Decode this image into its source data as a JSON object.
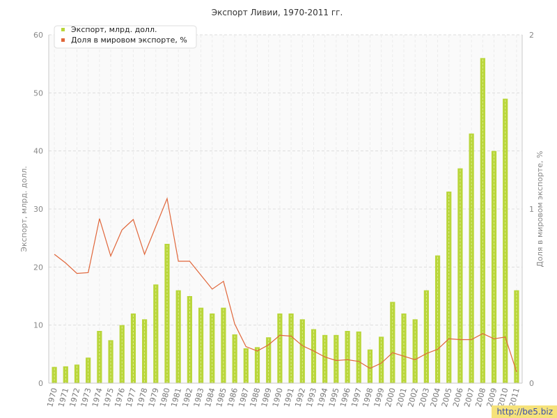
{
  "chart_data": {
    "type": "bar",
    "title": "Экспорт Ливии, 1970-2011 гг.",
    "ylabel": "Экспорт, млрд. долл.",
    "y2label": "Доля в мировом экспорте, %",
    "ylim": [
      0,
      60
    ],
    "y_ticks": [
      "0",
      "10",
      "20",
      "30",
      "40",
      "50",
      "60"
    ],
    "y2lim": [
      0,
      2
    ],
    "y2_ticks": [
      "0",
      "1",
      "2"
    ],
    "grid": true,
    "legend_position": "top-left",
    "categories": [
      "1970",
      "1971",
      "1972",
      "1973",
      "1974",
      "1975",
      "1976",
      "1977",
      "1978",
      "1979",
      "1980",
      "1981",
      "1982",
      "1983",
      "1984",
      "1985",
      "1986",
      "1987",
      "1988",
      "1989",
      "1990",
      "1991",
      "1992",
      "1993",
      "1994",
      "1995",
      "1996",
      "1997",
      "1998",
      "1999",
      "2000",
      "2001",
      "2002",
      "2003",
      "2004",
      "2005",
      "2006",
      "2007",
      "2008",
      "2009",
      "2010",
      "2011"
    ],
    "series": [
      {
        "name": "Экспорт, млрд. долл.",
        "type": "bar",
        "axis": "left",
        "color": "#b9d63a",
        "values": [
          2.8,
          2.9,
          3.2,
          4.4,
          9.0,
          7.4,
          10.0,
          12.0,
          11.0,
          17.0,
          24.0,
          16.0,
          15.0,
          13.0,
          12.0,
          13.0,
          8.4,
          6.0,
          6.2,
          7.9,
          12.0,
          12.0,
          11.0,
          9.3,
          8.3,
          8.3,
          9.0,
          8.9,
          5.8,
          8.0,
          14.0,
          12.0,
          11.0,
          16.0,
          22.0,
          33.0,
          37.0,
          43.0,
          56.0,
          40.0,
          49.0,
          16.0
        ]
      },
      {
        "name": "Доля в мировом экспорте, %",
        "type": "line",
        "axis": "right",
        "color": "#e0663a",
        "values": [
          0.74,
          0.69,
          0.63,
          0.635,
          0.945,
          0.73,
          0.88,
          0.94,
          0.74,
          0.9,
          1.06,
          0.7,
          0.7,
          0.62,
          0.54,
          0.585,
          0.34,
          0.21,
          0.185,
          0.22,
          0.275,
          0.27,
          0.215,
          0.185,
          0.15,
          0.13,
          0.135,
          0.125,
          0.085,
          0.115,
          0.175,
          0.155,
          0.135,
          0.17,
          0.195,
          0.255,
          0.25,
          0.25,
          0.285,
          0.255,
          0.265,
          0.065
        ]
      }
    ]
  },
  "watermark": "http://be5.biz"
}
